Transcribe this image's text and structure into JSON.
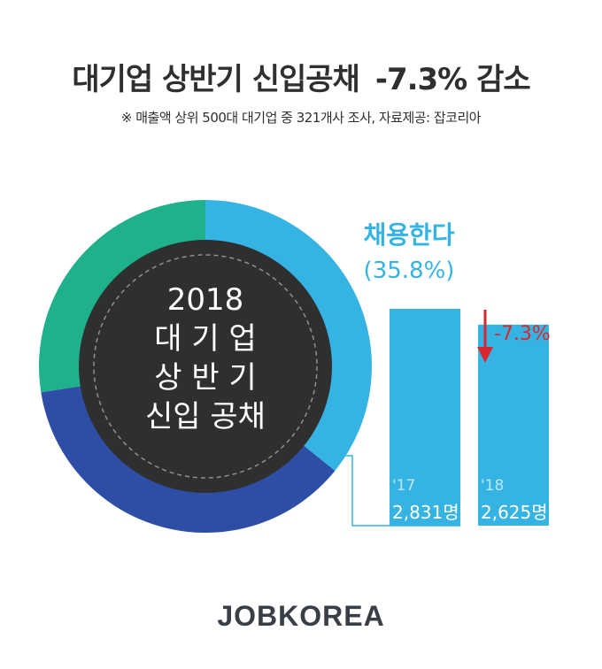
{
  "title_left": "대기업 상반기 신입공채",
  "title_right": "-7.3% 감소",
  "note": "※ 매출액 상위 500대 대기업 중 321개사 조사,  자료제공: 잡코리아",
  "footer_brand": "JOBKOREA",
  "colors": {
    "hiring": "#35b4e4",
    "segment_blue": "#2d4ea4",
    "segment_green": "#1fb08c",
    "center": "#2f2f2f",
    "decrease_red": "#d7282f"
  },
  "chart_data": [
    {
      "type": "pie",
      "center_label": [
        "2018",
        "대 기 업",
        "상 반 기",
        "신입 공채"
      ],
      "slices": [
        {
          "name": "채용한다",
          "value": 35.8,
          "label_text": "채용한다",
          "value_text": "(35.8%)"
        },
        {
          "value": 36.7
        },
        {
          "value": 27.5
        }
      ]
    },
    {
      "type": "bar",
      "categories": [
        "'17",
        "'18"
      ],
      "values": [
        2831,
        2625
      ],
      "value_labels": [
        "2,831명",
        "2,625명"
      ],
      "change_label": "-7.3%",
      "ylim": [
        0,
        2831
      ]
    }
  ]
}
